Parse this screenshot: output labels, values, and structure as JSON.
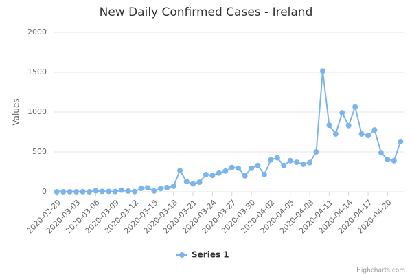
{
  "chart_data": {
    "type": "line",
    "title": "New Daily Confirmed Cases - Ireland",
    "y_axis_label": "Values",
    "categories": [
      "2020-02-29",
      null,
      null,
      "2020-03-03",
      null,
      null,
      "2020-03-06",
      null,
      null,
      "2020-03-09",
      null,
      null,
      "2020-03-12",
      null,
      null,
      "2020-03-15",
      null,
      null,
      "2020-03-18",
      null,
      null,
      "2020-03-21",
      null,
      null,
      "2020-03-24",
      null,
      null,
      "2020-03-27",
      null,
      null,
      "2020-03-30",
      null,
      null,
      "2020-04-02",
      null,
      null,
      "2020-04-05",
      null,
      null,
      "2020-04-08",
      null,
      null,
      "2020-04-11",
      null,
      null,
      "2020-04-14",
      null,
      null,
      "2020-04-17",
      null,
      null,
      "2020-04-20",
      null,
      null
    ],
    "series": [
      {
        "name": "Series 1",
        "color": "#7cb5ec",
        "values": [
          0,
          0,
          1,
          0,
          1,
          0,
          13,
          5,
          5,
          3,
          20,
          9,
          3,
          43,
          50,
          10,
          40,
          53,
          70,
          267,
          129,
          100,
          120,
          215,
          205,
          235,
          260,
          305,
          295,
          200,
          295,
          330,
          215,
          400,
          425,
          330,
          390,
          370,
          345,
          365,
          500,
          1515,
          835,
          725,
          990,
          830,
          1065,
          725,
          705,
          775,
          490,
          405,
          390,
          630
        ]
      }
    ],
    "ylim": [
      0,
      2000
    ],
    "yticks": [
      0,
      500,
      1000,
      1500,
      2000
    ],
    "grid": true,
    "legend": "bottom",
    "credits": "Highcharts.com"
  }
}
